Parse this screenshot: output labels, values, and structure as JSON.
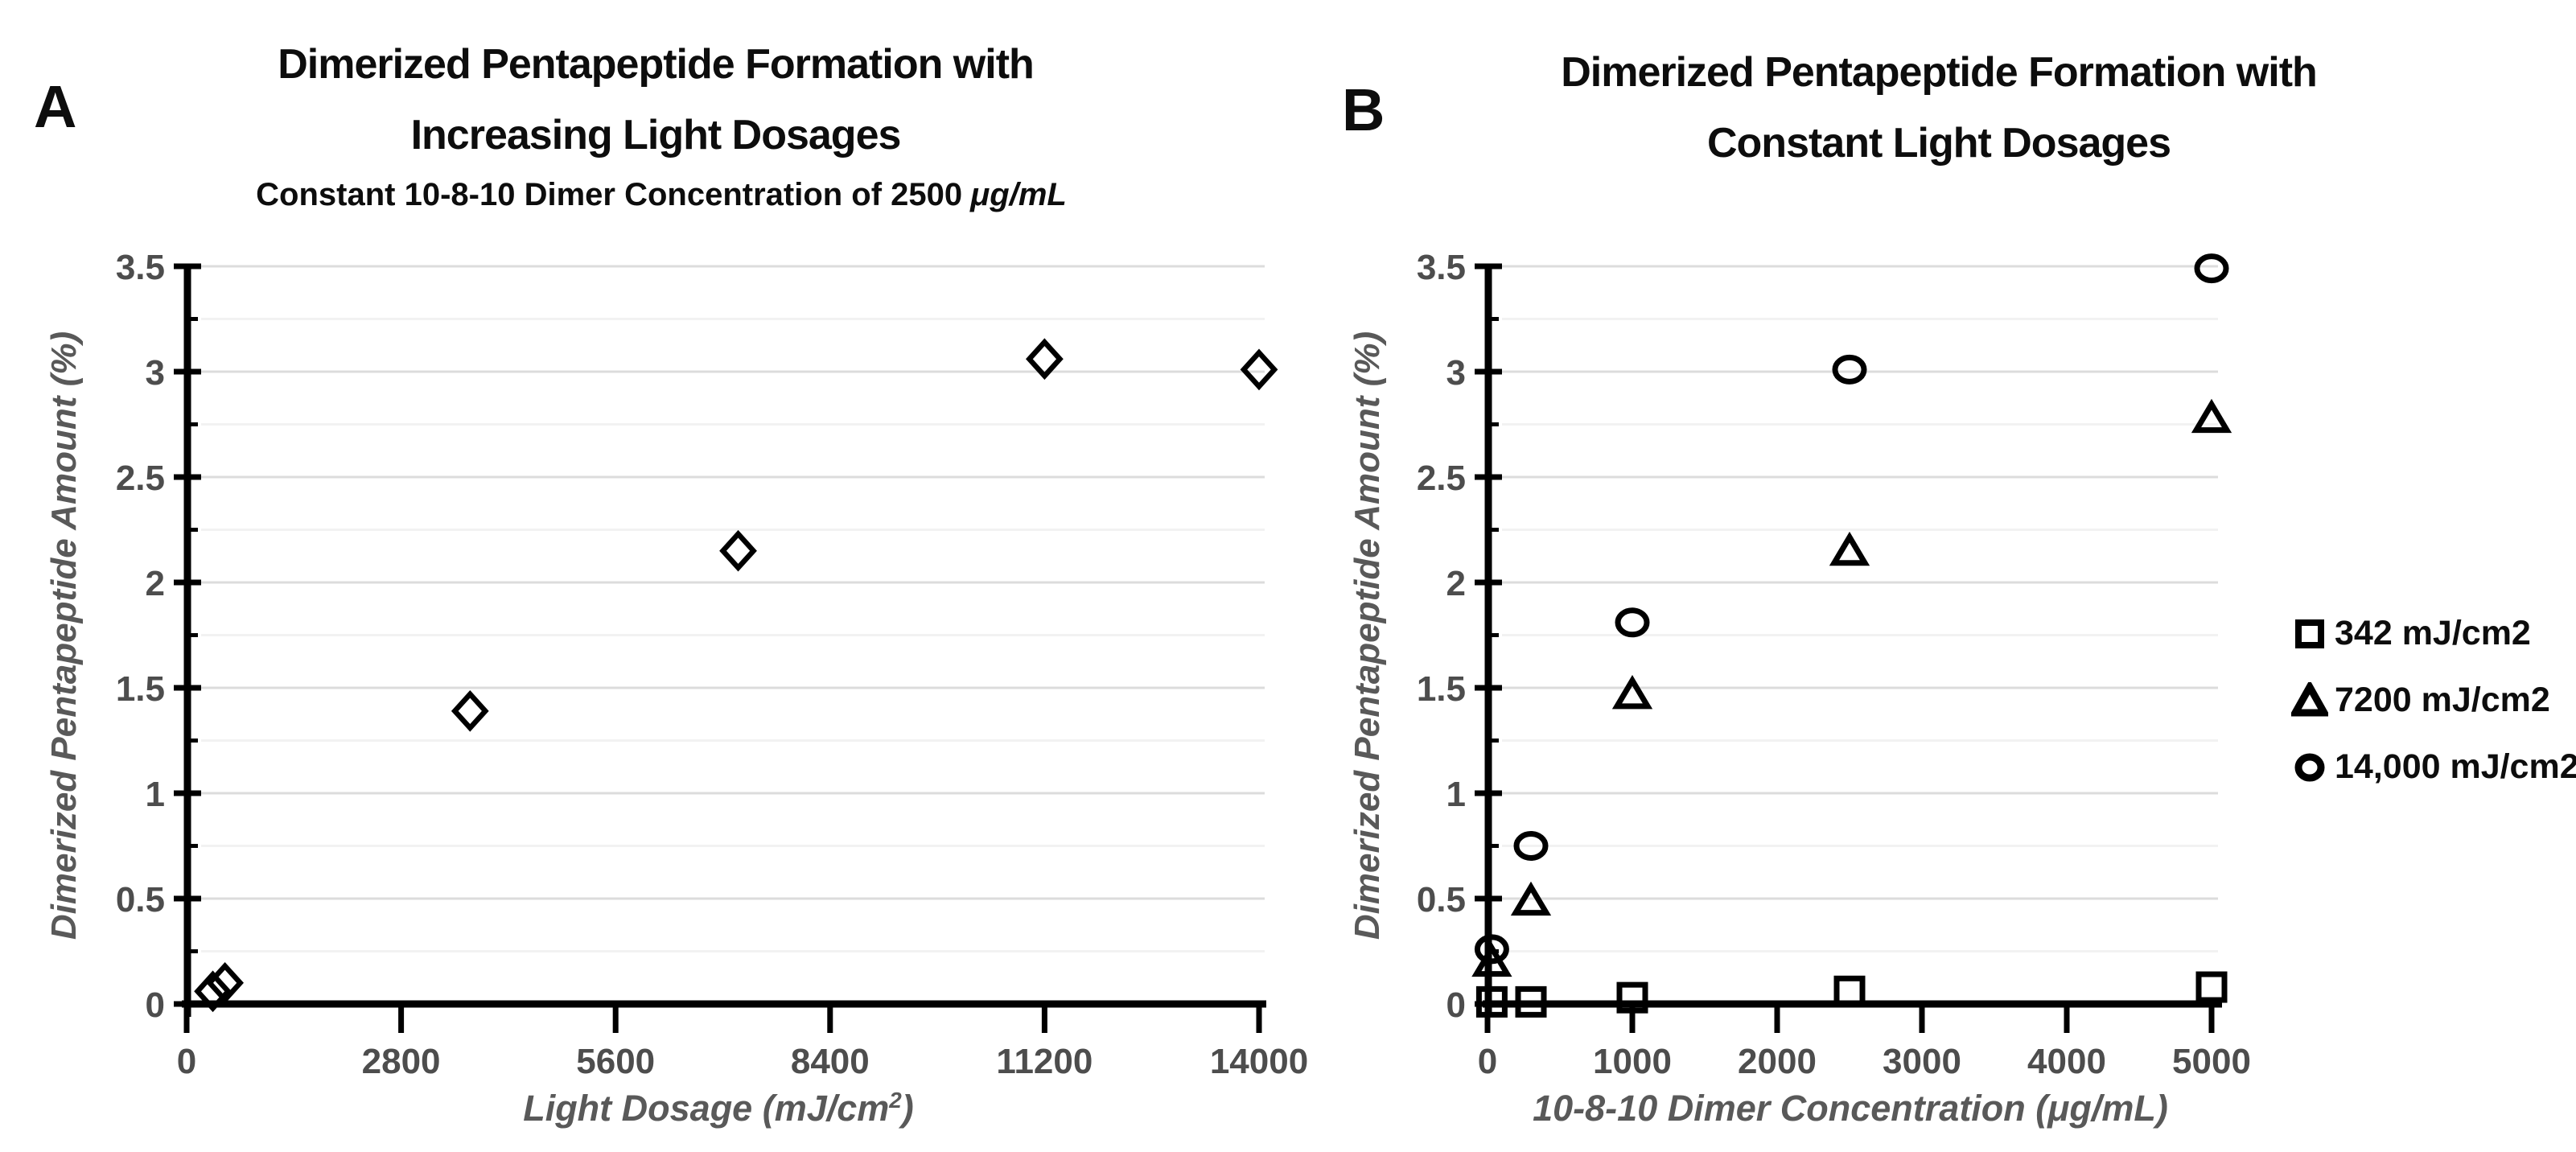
{
  "figure": {
    "background": "#ffffff",
    "text_color": "#0d0d0d",
    "axis_label_color": "#595959",
    "tick_label_color": "#4d4d4d",
    "grid_major_color": "#dcdcdc",
    "grid_minor_color": "#f2f2f2",
    "marker_color": "#000000"
  },
  "chart_data": [
    {
      "type": "scatter",
      "panel_label": "A",
      "title_lines": [
        "Dimerized Pentapeptide Formation with",
        "Increasing Light Dosages"
      ],
      "title": "Dimerized Pentapeptide Formation with Increasing Light Dosages",
      "subtitle_text": "Constant 10-8-10 Dimer Concentration of 2500",
      "subtitle_unit": "μg/mL",
      "xlabel": "Light Dosage (mJ/cm²)",
      "xlabel_parts": [
        "Light Dosage (mJ/cm",
        "2",
        ")"
      ],
      "ylabel": "Dimerized Pentapeptide Amount (%)",
      "xlim": [
        0,
        14000
      ],
      "ylim": [
        0,
        3.5
      ],
      "x_ticks": [
        0,
        2800,
        5600,
        8400,
        11200,
        14000
      ],
      "y_ticks": [
        0,
        0.5,
        1,
        1.5,
        2,
        2.5,
        3,
        3.5
      ],
      "y_minor_step": 0.25,
      "grid": "horizontal major+minor",
      "legend_position": "none",
      "series": [
        {
          "marker": "diamond",
          "points": [
            [
              342,
              0.06
            ],
            [
              500,
              0.1
            ],
            [
              3700,
              1.39
            ],
            [
              7200,
              2.15
            ],
            [
              11200,
              3.06
            ],
            [
              14000,
              3.01
            ]
          ]
        }
      ]
    },
    {
      "type": "scatter",
      "panel_label": "B",
      "title_lines": [
        "Dimerized Pentapeptide Formation with",
        "Constant Light Dosages"
      ],
      "title": "Dimerized Pentapeptide Formation with Constant Light Dosages",
      "xlabel": "10-8-10 Dimer Concentration (μg/mL)",
      "xlabel_parts": [
        "10-8-10 Dimer Concentration (μg/mL)",
        "",
        ""
      ],
      "ylabel": "Dimerized Pentapeptide Amount (%)",
      "xlim": [
        0,
        5000
      ],
      "ylim": [
        0,
        3.5
      ],
      "x_ticks": [
        0,
        1000,
        2000,
        3000,
        4000,
        5000
      ],
      "y_ticks": [
        0,
        0.5,
        1,
        1.5,
        2,
        2.5,
        3,
        3.5
      ],
      "y_minor_step": 0.25,
      "grid": "horizontal major+minor",
      "legend_position": "right",
      "series": [
        {
          "name": "342 mJ/cm2",
          "marker": "square",
          "points": [
            [
              30,
              0.01
            ],
            [
              300,
              0.01
            ],
            [
              1000,
              0.03
            ],
            [
              2500,
              0.06
            ],
            [
              5000,
              0.08
            ]
          ]
        },
        {
          "name": "7200 mJ/cm2",
          "marker": "triangle",
          "points": [
            [
              30,
              0.2
            ],
            [
              300,
              0.49
            ],
            [
              1000,
              1.47
            ],
            [
              2500,
              2.15
            ],
            [
              5000,
              2.78
            ]
          ]
        },
        {
          "name": "14,000 mJ/cm2",
          "marker": "circle",
          "points": [
            [
              30,
              0.26
            ],
            [
              300,
              0.75
            ],
            [
              1000,
              1.81
            ],
            [
              2500,
              3.01
            ],
            [
              5000,
              3.49
            ]
          ]
        }
      ]
    }
  ]
}
